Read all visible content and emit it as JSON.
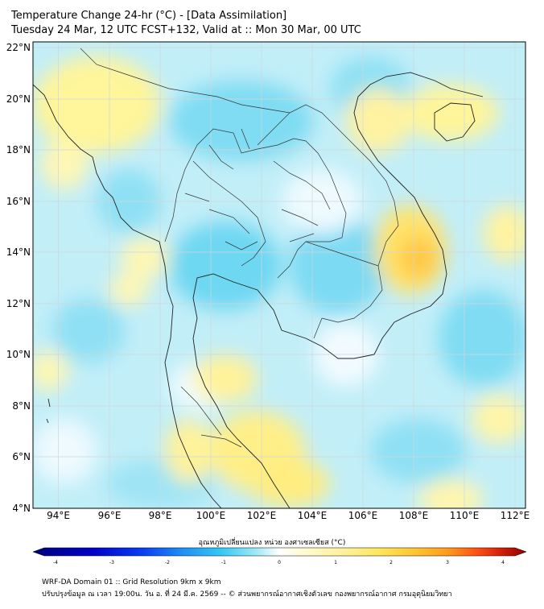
{
  "header": {
    "title_line1": "Temperature Change 24-hr (°C) - [Data Assimilation]",
    "title_line2": "Tuesday 24 Mar, 12 UTC FCST+132, Valid at :: Mon 30 Mar, 00 UTC"
  },
  "map": {
    "lat_labels": [
      "22°N",
      "20°N",
      "18°N",
      "16°N",
      "14°N",
      "12°N",
      "10°N",
      "8°N",
      "6°N",
      "4°N"
    ],
    "lon_labels": [
      "94°E",
      "96°E",
      "98°E",
      "100°E",
      "102°E",
      "104°E",
      "106°E",
      "108°E",
      "110°E",
      "112°E"
    ],
    "lat_range": [
      4,
      22.3
    ],
    "lon_range": [
      93.1,
      112.5
    ],
    "background_color": "#ffffff"
  },
  "colorbar": {
    "label": "อุณหภูมิเปลี่ยนแปลง หน่วย องศาเซลเซียส (°C)",
    "ticks": [
      "-4",
      "-3",
      "-2",
      "-1",
      "0",
      "1",
      "2",
      "3",
      "4"
    ],
    "range": [
      -4,
      4
    ],
    "colors": [
      "#00007a",
      "#0000c8",
      "#0a3cf0",
      "#1e8cf5",
      "#32c8f5",
      "#78e1f5",
      "#c8f5fa",
      "#ffffff",
      "#fffac8",
      "#fff096",
      "#ffe65a",
      "#ffc832",
      "#ff9b1e",
      "#ff5014",
      "#d21e0a",
      "#8c0000"
    ]
  },
  "footer": {
    "line1": "WRF-DA Domain 01 :: Grid Resolution 9km x 9km",
    "line2": "ปรับปรุงข้อมูล ณ เวลา 19:00น. วัน อ. ที่ 24 มี.ค. 2569 -- © ส่วนพยากรณ์อากาศเชิงตัวเลข กองพยากรณ์อากาศ กรมอุตุนิยมวิทยา"
  }
}
